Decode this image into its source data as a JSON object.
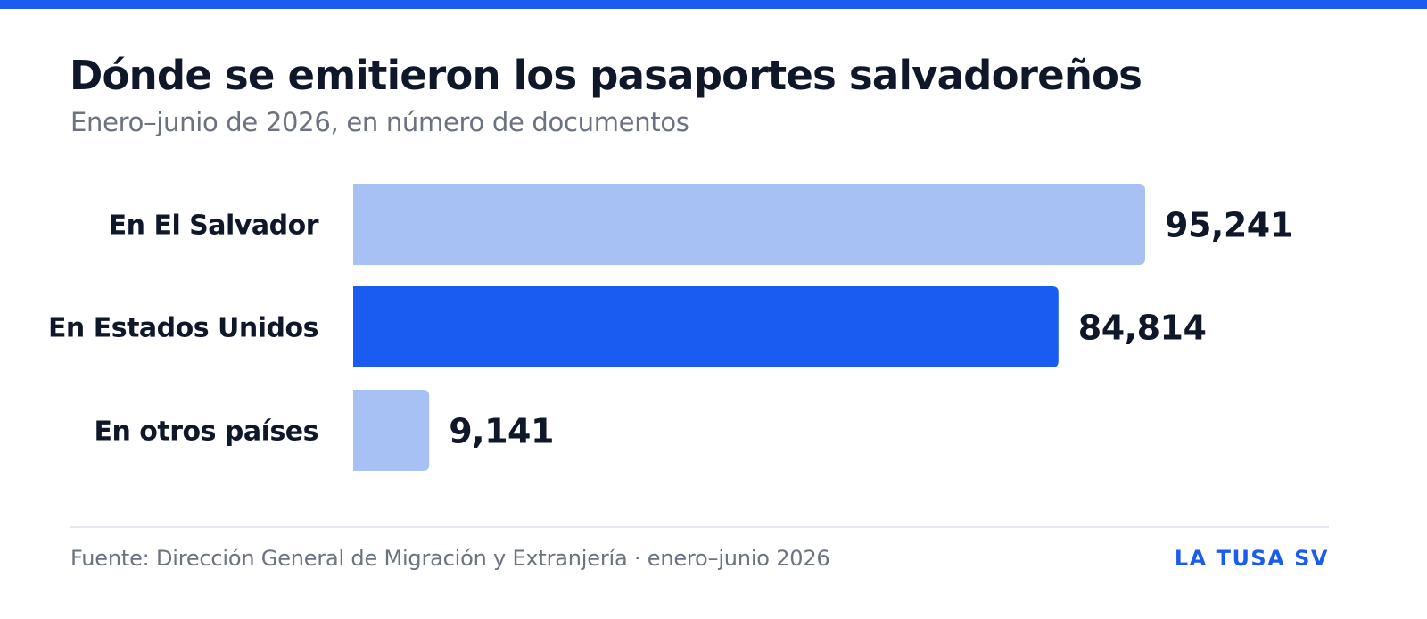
{
  "header": {
    "title": "Dónde se emitieron los pasaportes salvadoreños",
    "subtitle": "Enero–junio de 2026, en número de documentos"
  },
  "footer": {
    "source": "Fuente: Dirección General de Migración y Extranjería · enero–junio 2026",
    "brand": "LA TUSA SV"
  },
  "colors": {
    "accent": "#1a5cf0",
    "bar_muted": "#a8c1f4",
    "text_dark": "#0f172a",
    "text_muted": "#6b7280"
  },
  "chart_data": {
    "type": "bar",
    "orientation": "horizontal",
    "title": "Dónde se emitieron los pasaportes salvadoreños",
    "subtitle": "Enero–junio de 2026, en número de documentos",
    "categories": [
      "En El Salvador",
      "En Estados Unidos",
      "En otros países"
    ],
    "values": [
      95241,
      84814,
      9141
    ],
    "value_labels": [
      "95,241",
      "84,814",
      "9,141"
    ],
    "highlight": "En Estados Unidos",
    "xlim": [
      0,
      95241
    ],
    "grid": false,
    "legend": false
  }
}
